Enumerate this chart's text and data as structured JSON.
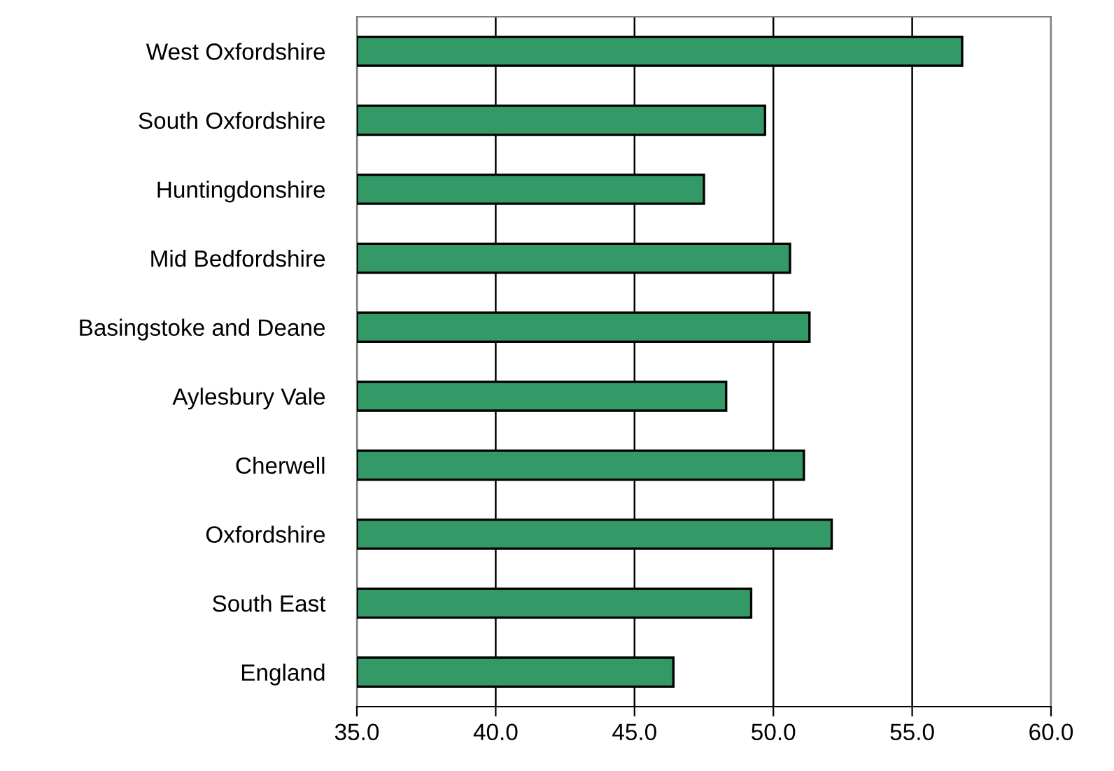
{
  "chart_data": {
    "type": "bar",
    "orientation": "horizontal",
    "categories": [
      "West Oxfordshire",
      "South Oxfordshire",
      "Huntingdonshire",
      "Mid Bedfordshire",
      "Basingstoke and Deane",
      "Aylesbury Vale",
      "Cherwell",
      "Oxfordshire",
      "South East",
      "England"
    ],
    "values": [
      56.8,
      49.7,
      47.5,
      50.6,
      51.3,
      48.3,
      51.1,
      52.1,
      49.2,
      46.4
    ],
    "color": "#339966",
    "xlim": [
      35.0,
      60.0
    ],
    "xticks": [
      {
        "value": 35,
        "label": "35.0"
      },
      {
        "value": 40,
        "label": "40.0"
      },
      {
        "value": 45,
        "label": "45.0"
      },
      {
        "value": 50,
        "label": "50.0"
      },
      {
        "value": 55,
        "label": "55.0"
      },
      {
        "value": 60,
        "label": "60.0"
      }
    ],
    "grid": "x",
    "legend": false
  }
}
